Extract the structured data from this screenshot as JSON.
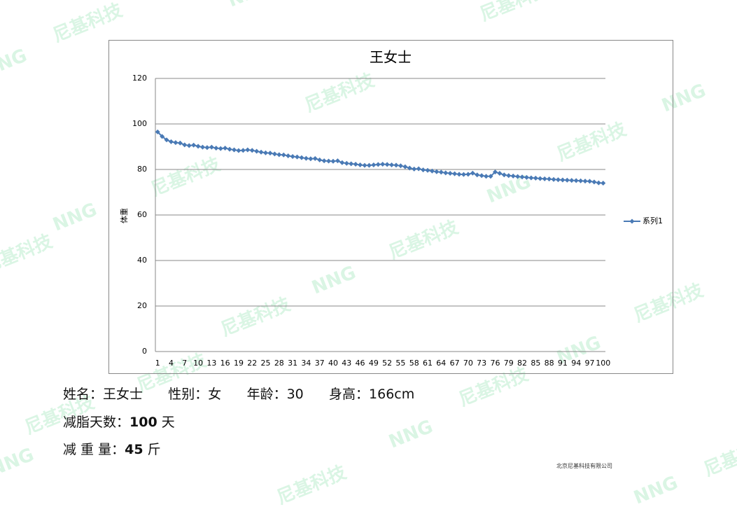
{
  "chart_data": {
    "type": "line",
    "title": "王女士",
    "y_label": "体重",
    "categories": [
      1,
      null,
      null,
      4,
      null,
      null,
      7,
      null,
      null,
      10,
      null,
      null,
      13,
      null,
      null,
      16,
      null,
      null,
      19,
      null,
      null,
      22,
      null,
      null,
      25,
      null,
      null,
      28,
      null,
      null,
      31,
      null,
      null,
      34,
      null,
      null,
      37,
      null,
      null,
      40,
      null,
      null,
      43,
      null,
      null,
      46,
      null,
      null,
      49,
      null,
      null,
      52,
      null,
      null,
      55,
      null,
      null,
      58,
      null,
      null,
      61,
      null,
      null,
      64,
      null,
      null,
      67,
      null,
      null,
      70,
      null,
      null,
      73,
      null,
      null,
      76,
      null,
      null,
      79,
      null,
      null,
      82,
      null,
      null,
      85,
      null,
      null,
      88,
      null,
      null,
      91,
      null,
      null,
      94,
      null,
      null,
      97,
      null,
      null,
      100
    ],
    "series": [
      {
        "name": "系列1",
        "color": "#4a7ab5",
        "values": [
          96.5,
          94.5,
          93,
          92.2,
          91.8,
          91.6,
          90.8,
          90.5,
          90.7,
          90.2,
          89.8,
          89.6,
          89.8,
          89.4,
          89.2,
          89.4,
          88.9,
          88.6,
          88.3,
          88.4,
          88.6,
          88.4,
          88.0,
          87.6,
          87.3,
          87.2,
          86.8,
          86.5,
          86.4,
          86.0,
          85.7,
          85.5,
          85.2,
          84.9,
          84.7,
          84.8,
          84.2,
          83.8,
          83.7,
          83.6,
          83.8,
          83.0,
          82.7,
          82.5,
          82.3,
          82.0,
          81.8,
          81.8,
          82.0,
          82.2,
          82.3,
          82.2,
          82.0,
          81.9,
          81.6,
          81.2,
          80.6,
          80.2,
          80.3,
          79.8,
          79.6,
          79.3,
          79.0,
          78.8,
          78.5,
          78.3,
          78.1,
          77.9,
          77.8,
          77.9,
          78.4,
          77.6,
          77.3,
          77.0,
          77.0,
          78.9,
          78.3,
          77.6,
          77.3,
          77.1,
          76.9,
          76.7,
          76.5,
          76.3,
          76.2,
          76.0,
          75.9,
          75.8,
          75.6,
          75.5,
          75.4,
          75.3,
          75.2,
          75.1,
          75.0,
          74.9,
          74.8,
          74.5,
          74.1,
          74.0
        ]
      }
    ],
    "ylim": [
      0,
      120
    ],
    "yticks": [
      0,
      20,
      40,
      60,
      80,
      100,
      120
    ],
    "grid": true,
    "legend": "right"
  },
  "info": {
    "name_label": "姓名：",
    "name": "王女士",
    "gender_label": "性别：",
    "gender": "女",
    "age_label": "年龄：",
    "age": 30,
    "height_label": "身高：",
    "height": "166cm",
    "days_label": "减脂天数：",
    "days": 100,
    "days_unit": "天",
    "loss_label": "减 重 量：",
    "loss": 45,
    "loss_unit": "斤"
  },
  "footer": "北京尼基科技有限公司",
  "watermark": {
    "logo": "尼基科技",
    "mark": "NNG"
  }
}
